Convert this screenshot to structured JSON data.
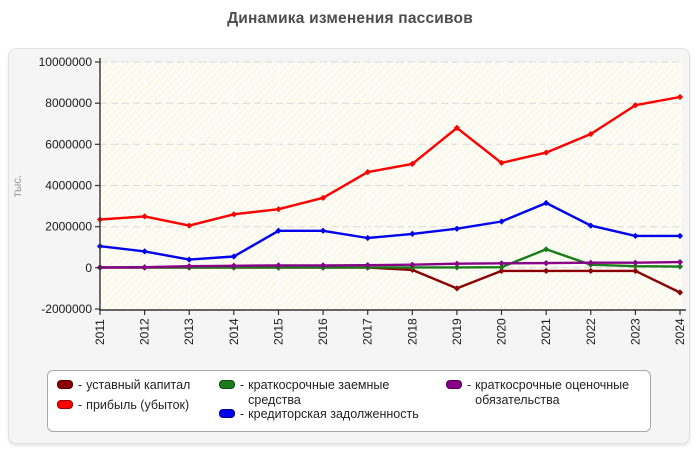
{
  "title": "Динамика изменения пассивов",
  "legend": {
    "prefix": "-"
  },
  "chart_data": {
    "type": "line",
    "title": "Динамика изменения пассивов",
    "xlabel": "",
    "ylabel": "тыс.",
    "categories": [
      "2011",
      "2012",
      "2013",
      "2014",
      "2015",
      "2016",
      "2017",
      "2018",
      "2019",
      "2020",
      "2021",
      "2022",
      "2023",
      "2024"
    ],
    "yticks": [
      10000000,
      8000000,
      6000000,
      4000000,
      2000000,
      0,
      -2000000
    ],
    "ylim": [
      -2000000,
      10000000
    ],
    "grid": true,
    "legend_position": "bottom",
    "marker": "diamond",
    "series": [
      {
        "name": "уставный капитал",
        "color": "#8b0000",
        "values": [
          10000,
          10000,
          10000,
          10000,
          10000,
          10000,
          10000,
          -100000,
          -1000000,
          -150000,
          -150000,
          -150000,
          -150000,
          -1200000
        ]
      },
      {
        "name": "прибыль (убыток)",
        "color": "#fe0000",
        "values": [
          2350000,
          2500000,
          2050000,
          2600000,
          2850000,
          3400000,
          4650000,
          5050000,
          6800000,
          5100000,
          5600000,
          6500000,
          7900000,
          8300000
        ]
      },
      {
        "name": "краткосрочные заемные средства",
        "color": "#1a7c1a",
        "values": [
          20000,
          20000,
          20000,
          20000,
          20000,
          20000,
          20000,
          20000,
          20000,
          30000,
          900000,
          150000,
          80000,
          60000
        ]
      },
      {
        "name": "кредиторская задолженность",
        "color": "#0101ee",
        "values": [
          1050000,
          800000,
          400000,
          550000,
          1800000,
          1800000,
          1450000,
          1650000,
          1900000,
          2250000,
          3150000,
          2050000,
          1550000,
          1550000
        ]
      },
      {
        "name": "краткосрочные оценочные обязательства",
        "color": "#870087",
        "values": [
          20000,
          30000,
          80000,
          100000,
          120000,
          120000,
          130000,
          150000,
          200000,
          220000,
          230000,
          250000,
          250000,
          280000
        ]
      }
    ]
  }
}
